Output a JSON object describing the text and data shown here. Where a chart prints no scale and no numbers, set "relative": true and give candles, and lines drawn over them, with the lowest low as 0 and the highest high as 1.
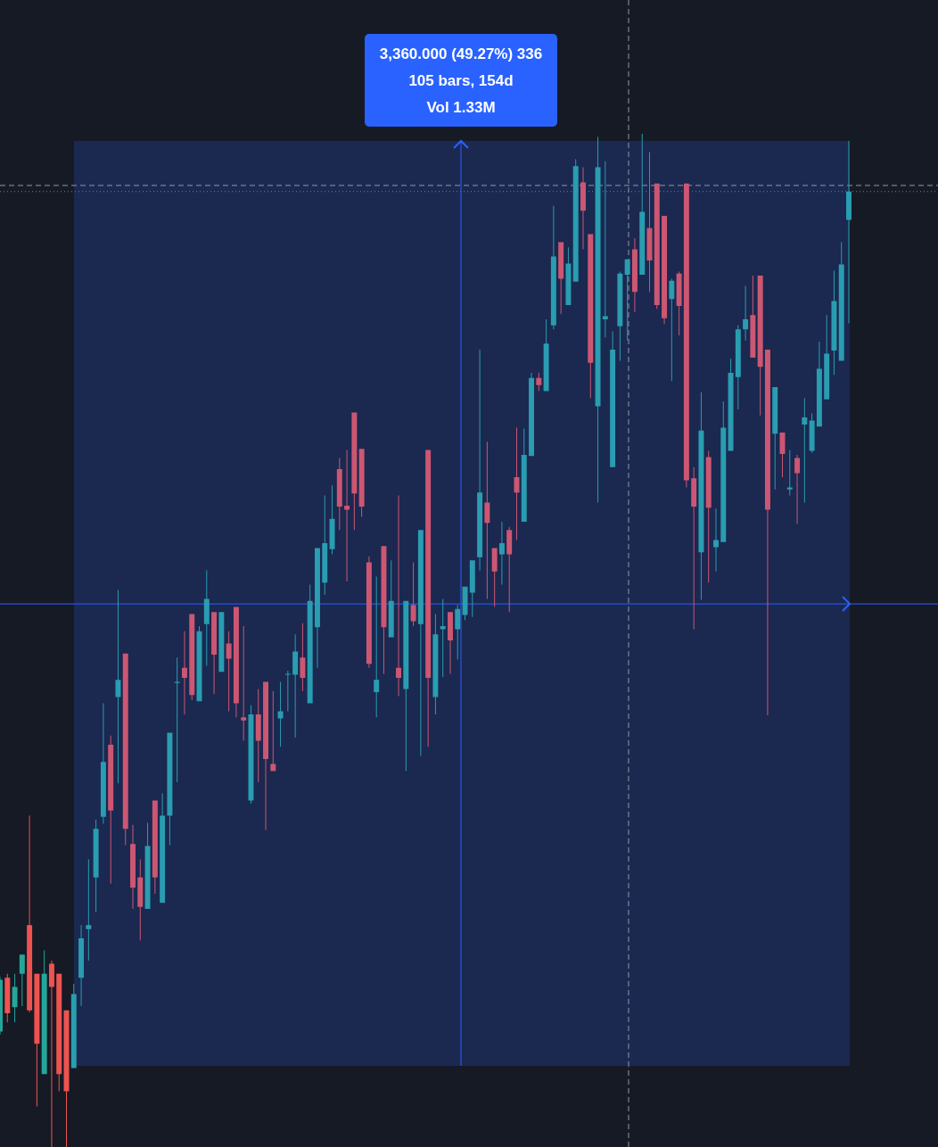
{
  "chart_data": {
    "type": "candlestick",
    "relative": true,
    "categories": [
      null,
      null,
      null,
      null,
      null,
      null,
      null,
      null,
      null,
      null,
      null,
      null,
      null,
      null,
      null,
      null,
      null,
      null,
      null,
      null,
      null,
      null,
      null,
      null,
      null,
      null,
      null,
      null,
      null,
      null,
      null,
      null,
      null,
      null,
      null,
      null,
      null,
      null,
      null,
      null,
      null,
      null,
      null,
      null,
      null,
      null,
      null,
      null,
      null,
      null,
      null,
      null,
      null,
      null,
      null,
      null,
      null,
      null,
      null,
      null,
      null,
      null,
      null,
      null,
      null,
      null,
      null,
      null,
      null,
      null,
      null,
      null,
      null,
      null,
      null,
      null,
      null,
      null,
      null,
      null,
      null,
      null,
      null,
      null,
      null,
      null,
      null,
      null,
      null,
      null,
      null,
      null,
      null,
      null,
      null,
      null,
      null,
      null,
      null,
      null,
      null,
      null,
      null,
      null,
      null,
      null,
      null,
      null,
      null,
      null,
      null,
      null,
      null,
      null,
      null,
      null
    ],
    "ohlc": [
      [
        0.114,
        0.168,
        0.111,
        0.165
      ],
      [
        0.167,
        0.171,
        0.123,
        0.132
      ],
      [
        0.138,
        0.171,
        0.123,
        0.158
      ],
      [
        0.171,
        0.19,
        0.139,
        0.19
      ],
      [
        0.219,
        0.327,
        0.133,
        0.135
      ],
      [
        0.171,
        0.171,
        0.04,
        0.102
      ],
      [
        0.072,
        0.194,
        0.072,
        0.171
      ],
      [
        0.181,
        0.184,
        0,
        0.158
      ],
      [
        0.171,
        0.171,
        0.055,
        0.072
      ],
      [
        0.135,
        0.135,
        0,
        0.055
      ],
      [
        0.078,
        0.161,
        0.078,
        0.151
      ],
      [
        0.167,
        0.219,
        0.139,
        0.206
      ],
      [
        0.215,
        0.284,
        0.184,
        0.219
      ],
      [
        0.266,
        0.323,
        0.232,
        0.314
      ],
      [
        0.326,
        0.438,
        0.319,
        0.38
      ],
      [
        0.397,
        0.406,
        0.26,
        0.332
      ],
      [
        0.444,
        0.55,
        0.359,
        0.461
      ],
      [
        0.487,
        0.487,
        0.298,
        0.314
      ],
      [
        0.299,
        0.318,
        0.235,
        0.256
      ],
      [
        0.266,
        0.284,
        0.204,
        0.237
      ],
      [
        0.235,
        0.32,
        0.235,
        0.297
      ],
      [
        0.342,
        0.342,
        0.25,
        0.266
      ],
      [
        0.241,
        0.349,
        0.241,
        0.327
      ],
      [
        0.327,
        0.409,
        0.298,
        0.409
      ],
      [
        0.458,
        0.483,
        0.36,
        0.459
      ],
      [
        0.473,
        0.509,
        0.427,
        0.463
      ],
      [
        0.526,
        0.526,
        0.441,
        0.446
      ],
      [
        0.44,
        0.514,
        0.44,
        0.509
      ],
      [
        0.516,
        0.569,
        0.475,
        0.541
      ],
      [
        0.528,
        0.528,
        0.447,
        0.486
      ],
      [
        0.469,
        0.528,
        0.469,
        0.528
      ],
      [
        0.497,
        0.509,
        0.43,
        0.482
      ],
      [
        0.533,
        0.533,
        0.424,
        0.438
      ],
      [
        0.424,
        0.514,
        0.401,
        0.421
      ],
      [
        0.342,
        0.436,
        0.339,
        0.427
      ],
      [
        0.427,
        0.452,
        0.36,
        0.401
      ],
      [
        0.459,
        0.459,
        0.313,
        0.383
      ],
      [
        0.378,
        0.45,
        0.371,
        0.371
      ],
      [
        0.423,
        0.459,
        0.395,
        0.43
      ],
      [
        0.466,
        0.47,
        0.43,
        0.467
      ],
      [
        0.466,
        0.506,
        0.404,
        0.489
      ],
      [
        0.483,
        0.517,
        0.45,
        0.463
      ],
      [
        0.438,
        0.555,
        0.438,
        0.539
      ],
      [
        0.513,
        0.591,
        0.473,
        0.591
      ],
      [
        0.557,
        0.643,
        0.545,
        0.596
      ],
      [
        0.59,
        0.653,
        0.585,
        0.62
      ],
      [
        0.669,
        0.68,
        0.609,
        0.632
      ],
      [
        0.633,
        0.688,
        0.558,
        0.629
      ],
      [
        0.725,
        0.725,
        0.609,
        0.645
      ],
      [
        0.689,
        0.689,
        0.622,
        0.632
      ],
      [
        0.577,
        0.583,
        0.473,
        0.477
      ],
      [
        0.449,
        0.563,
        0.424,
        0.461
      ],
      [
        0.593,
        0.593,
        0.467,
        0.513
      ],
      [
        0.503,
        0.579,
        0.503,
        0.539
      ],
      [
        0.473,
        0.643,
        0.445,
        0.463
      ],
      [
        0.452,
        0.539,
        0.371,
        0.539
      ],
      [
        0.535,
        0.577,
        0.514,
        0.519
      ],
      [
        0.516,
        0.609,
        0.386,
        0.609
      ],
      [
        0.688,
        0.688,
        0.395,
        0.463
      ],
      [
        0.444,
        0.526,
        0.427,
        0.506
      ],
      [
        0.511,
        0.541,
        0.464,
        0.514
      ],
      [
        0.528,
        0.528,
        0.467,
        0.5
      ],
      [
        0.511,
        0.535,
        0.481,
        0.531
      ],
      [
        0.525,
        0.553,
        0.52,
        0.553
      ],
      [
        0.547,
        0.579,
        0.523,
        0.579
      ],
      [
        0.582,
        0.787,
        0.569,
        0.646
      ],
      [
        0.636,
        0.696,
        0.541,
        0.616
      ],
      [
        0.591,
        0.591,
        0.533,
        0.568
      ],
      [
        0.585,
        0.617,
        0.555,
        0.596
      ],
      [
        0.609,
        0.612,
        0.528,
        0.585
      ],
      [
        0.661,
        0.71,
        0.599,
        0.646
      ],
      [
        0.617,
        0.709,
        0.617,
        0.683
      ],
      [
        0.682,
        0.764,
        0.682,
        0.759
      ],
      [
        0.759,
        0.764,
        0.746,
        0.752
      ],
      [
        0.746,
        0.817,
        0.746,
        0.793
      ],
      [
        0.811,
        0.929,
        0.807,
        0.879
      ],
      [
        0.893,
        0.893,
        0.822,
        0.857
      ],
      [
        0.831,
        0.888,
        0.831,
        0.872
      ],
      [
        0.854,
        0.975,
        0.854,
        0.968
      ],
      [
        0.952,
        0.967,
        0.886,
        0.924
      ],
      [
        0.901,
        0.901,
        0.739,
        0.774
      ],
      [
        0.731,
        0.997,
        0.636,
        0.967
      ],
      [
        0.817,
        0.973,
        0.799,
        0.82
      ],
      [
        0.671,
        0.805,
        0.671,
        0.787
      ],
      [
        0.81,
        0.864,
        0.776,
        0.862
      ],
      [
        0.861,
        0.876,
        0.796,
        0.876
      ],
      [
        0.886,
        0.897,
        0.824,
        0.844
      ],
      [
        0.861,
        1,
        0.861,
        0.923
      ],
      [
        0.907,
        0.982,
        0.844,
        0.875
      ],
      [
        0.951,
        0.951,
        0.827,
        0.831
      ],
      [
        0.919,
        0.919,
        0.812,
        0.818
      ],
      [
        0.837,
        0.857,
        0.756,
        0.855
      ],
      [
        0.862,
        0.864,
        0.801,
        0.83
      ],
      [
        0.951,
        0.951,
        0.651,
        0.658
      ],
      [
        0.66,
        0.671,
        0.511,
        0.632
      ],
      [
        0.587,
        0.745,
        0.54,
        0.707
      ],
      [
        0.681,
        0.687,
        0.557,
        0.631
      ],
      [
        0.592,
        0.63,
        0.568,
        0.599
      ],
      [
        0.597,
        0.736,
        0.597,
        0.71
      ],
      [
        0.687,
        0.778,
        0.687,
        0.764
      ],
      [
        0.76,
        0.811,
        0.728,
        0.807
      ],
      [
        0.807,
        0.85,
        0.796,
        0.817
      ],
      [
        0.821,
        0.86,
        0.779,
        0.779
      ],
      [
        0.86,
        0.86,
        0.722,
        0.77
      ],
      [
        0.787,
        0.787,
        0.426,
        0.629
      ],
      [
        0.704,
        0.75,
        0.649,
        0.75
      ],
      [
        0.705,
        0.705,
        0.661,
        0.684
      ],
      [
        0.649,
        0.688,
        0.643,
        0.651
      ],
      [
        0.68,
        0.683,
        0.615,
        0.665
      ],
      [
        0.713,
        0.739,
        0.636,
        0.72
      ],
      [
        0.687,
        0.724,
        0.685,
        0.717
      ],
      [
        0.711,
        0.795,
        0.711,
        0.768
      ],
      [
        0.738,
        0.821,
        0.738,
        0.783
      ],
      [
        0.786,
        0.865,
        0.762,
        0.835
      ],
      [
        0.776,
        0.893,
        0.776,
        0.871
      ],
      [
        0.915,
        0.993,
        0.813,
        0.943
      ]
    ],
    "colors": [
      "#26a69a",
      "#ef5350",
      "#26a69a",
      "#26a69a",
      "#ef5350",
      "#ef5350",
      "#26a69a",
      "#ef5350",
      "#ef5350",
      "#ef5350",
      "#2a9db0",
      "#2a9db0",
      "#2a9db0",
      "#2a9db0",
      "#2a9db0",
      "#cc5772",
      "#2a9db0",
      "#cc5772",
      "#cc5772",
      "#cc5772",
      "#2a9db0",
      "#cc5772",
      "#2a9db0",
      "#2a9db0",
      "#2a9db0",
      "#cc5772",
      "#cc5772",
      "#2a9db0",
      "#2a9db0",
      "#cc5772",
      "#2a9db0",
      "#cc5772",
      "#cc5772",
      "#cc5772",
      "#2a9db0",
      "#cc5772",
      "#cc5772",
      "#cc5772",
      "#2a9db0",
      "#2a9db0",
      "#2a9db0",
      "#cc5772",
      "#2a9db0",
      "#2a9db0",
      "#2a9db0",
      "#2a9db0",
      "#cc5772",
      "#cc5772",
      "#cc5772",
      "#cc5772",
      "#cc5772",
      "#2a9db0",
      "#cc5772",
      "#2a9db0",
      "#cc5772",
      "#2a9db0",
      "#cc5772",
      "#2a9db0",
      "#cc5772",
      "#2a9db0",
      "#2a9db0",
      "#cc5772",
      "#2a9db0",
      "#2a9db0",
      "#2a9db0",
      "#2a9db0",
      "#cc5772",
      "#cc5772",
      "#2a9db0",
      "#cc5772",
      "#cc5772",
      "#2a9db0",
      "#2a9db0",
      "#cc5772",
      "#2a9db0",
      "#2a9db0",
      "#cc5772",
      "#2a9db0",
      "#2a9db0",
      "#cc5772",
      "#cc5772",
      "#2a9db0",
      "#2a9db0",
      "#2a9db0",
      "#2a9db0",
      "#2a9db0",
      "#cc5772",
      "#2a9db0",
      "#cc5772",
      "#cc5772",
      "#cc5772",
      "#2a9db0",
      "#cc5772",
      "#cc5772",
      "#cc5772",
      "#2a9db0",
      "#cc5772",
      "#2a9db0",
      "#2a9db0",
      "#2a9db0",
      "#2a9db0",
      "#2a9db0",
      "#cc5772",
      "#cc5772",
      "#cc5772",
      "#2a9db0",
      "#cc5772",
      "#2a9db0",
      "#cc5772",
      "#2a9db0",
      "#2a9db0",
      "#2a9db0",
      "#2a9db0",
      "#2a9db0",
      "#2a9db0",
      "#2a9db0"
    ],
    "ref_lines": [
      {
        "axis": "y",
        "value": 0.949,
        "color": "#9598a1",
        "line_style": "dashed"
      },
      {
        "axis": "y",
        "value": 0.943,
        "color": "#26a69a",
        "line_style": "dotted"
      },
      {
        "axis": "y",
        "value": 0.536,
        "color": "#2962ff",
        "line_style": "solid"
      }
    ],
    "annotations": [
      "3,360.000 (49.27%) 336",
      "105 bars, 154d",
      "Vol 1.33M"
    ]
  }
}
